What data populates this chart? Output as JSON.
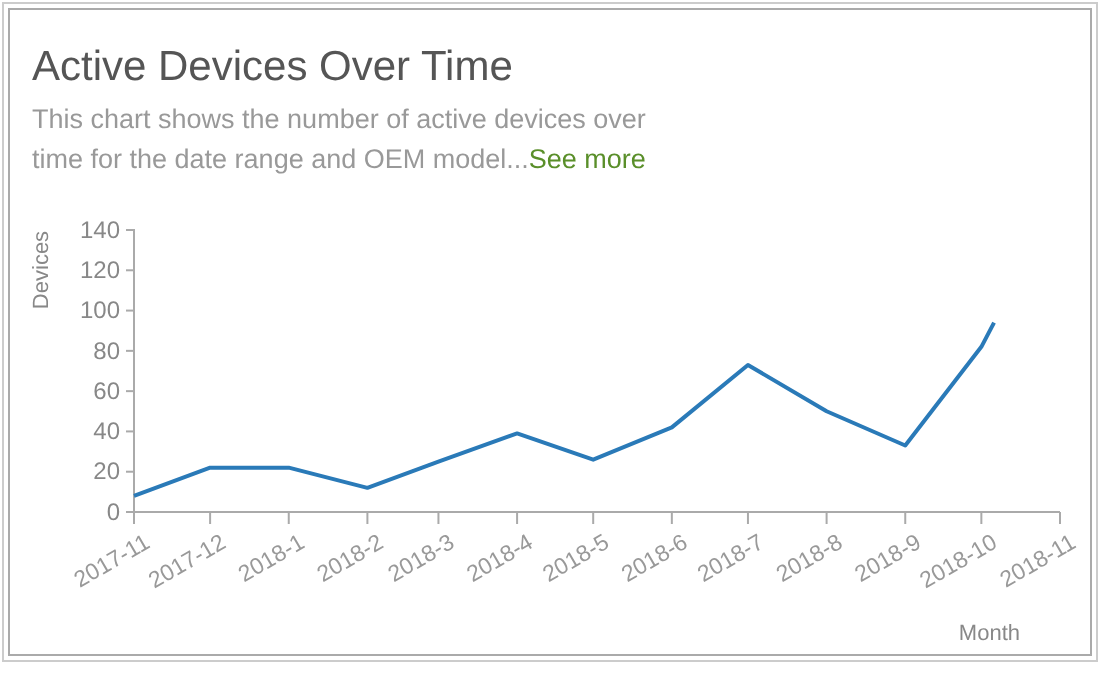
{
  "chart_data": {
    "type": "line",
    "title": "Active Devices Over Time",
    "subtitle": "This chart shows the number of active devices over time for the date range and OEM model...",
    "annotations": [
      "See more"
    ],
    "xlabel": "Month",
    "ylabel": "Devices",
    "x": [
      "2017-11-01",
      "2017-12-01",
      "2018-01-01",
      "2018-02-01",
      "2018-03-01",
      "2018-04-01",
      "2018-05-01",
      "2018-06-01",
      "2018-07-01",
      "2018-08-01",
      "2018-09-01",
      "2018-10-01",
      "2018-10-06"
    ],
    "series": [
      {
        "color": "#2a7ab8",
        "values": [
          8,
          22,
          22,
          12,
          25,
          39,
          26,
          42,
          73,
          50,
          33,
          82,
          94
        ]
      }
    ],
    "xlim": [
      "2017-11-01",
      "2018-11-01"
    ],
    "xticks": [
      {
        "value": "2017-11-01",
        "label": "2017-11"
      },
      {
        "value": "2017-12-01",
        "label": "2017-12"
      },
      {
        "value": "2018-01-01",
        "label": "2018-1"
      },
      {
        "value": "2018-02-01",
        "label": "2018-2"
      },
      {
        "value": "2018-03-01",
        "label": "2018-3"
      },
      {
        "value": "2018-04-01",
        "label": "2018-4"
      },
      {
        "value": "2018-05-01",
        "label": "2018-5"
      },
      {
        "value": "2018-06-01",
        "label": "2018-6"
      },
      {
        "value": "2018-07-01",
        "label": "2018-7"
      },
      {
        "value": "2018-08-01",
        "label": "2018-8"
      },
      {
        "value": "2018-09-01",
        "label": "2018-9"
      },
      {
        "value": "2018-10-01",
        "label": "2018-10"
      },
      {
        "value": "2018-11-01",
        "label": "2018-11"
      }
    ],
    "ylim": [
      0,
      140
    ],
    "yticks": [
      0,
      20,
      40,
      60,
      80,
      100,
      120,
      140
    ],
    "grid": false,
    "marker": "none",
    "line_style": "solid"
  }
}
